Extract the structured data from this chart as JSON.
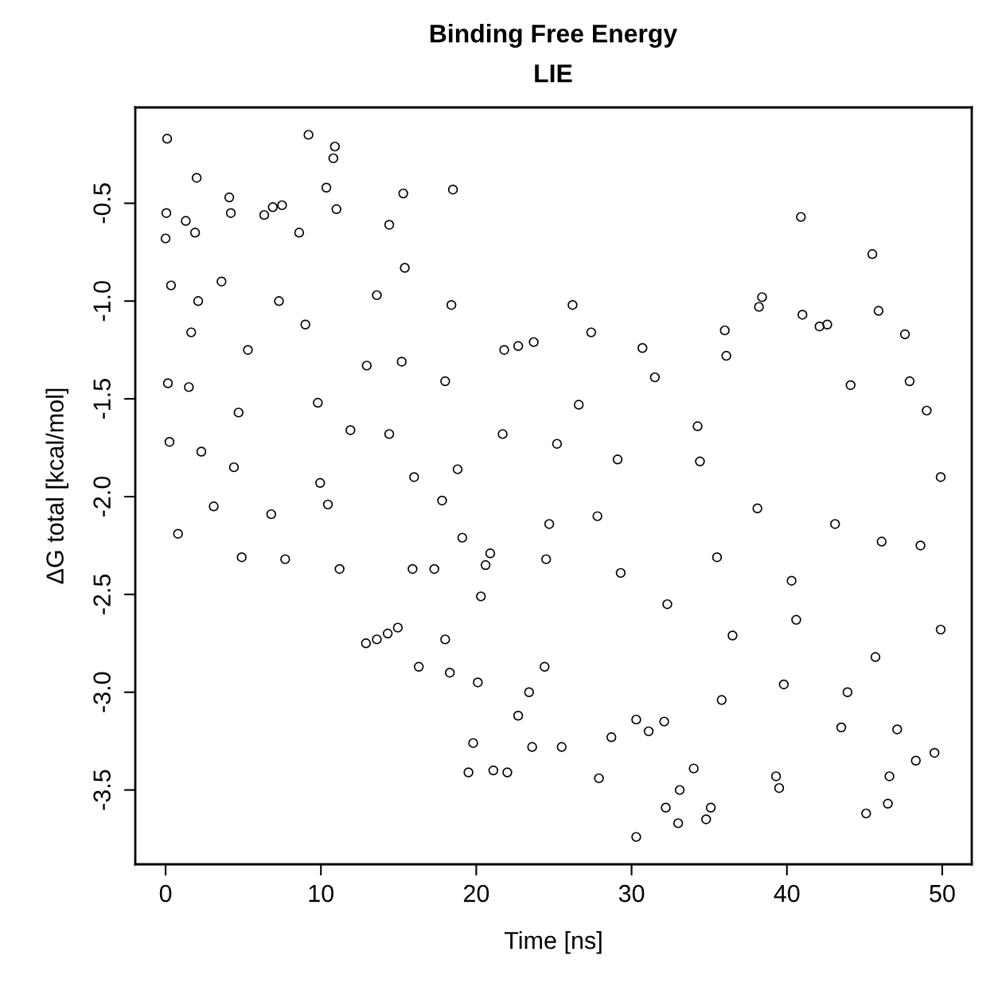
{
  "chart_data": {
    "type": "scatter",
    "title": "Binding Free Energy",
    "subtitle": "LIE",
    "xlabel": "Time [ns]",
    "ylabel": "ΔG total [kcal/mol]",
    "marker": "circle",
    "grid": false,
    "legend": false,
    "xlim": [
      -1.95,
      51.9
    ],
    "ylim": [
      -3.88,
      -0.01
    ],
    "xticks": [
      0,
      10,
      20,
      30,
      40,
      50
    ],
    "yticks": [
      -0.5,
      {
        "value": -1,
        "label": "-1.0"
      },
      -1.5,
      {
        "value": -2,
        "label": "-2.0"
      },
      -2.5,
      {
        "value": -3,
        "label": "-3.0"
      },
      -3.5
    ],
    "series": [
      {
        "color": "#000000",
        "x": [
          0.1,
          0.05,
          0,
          0.35,
          0.15,
          0.25,
          0.8,
          2.0,
          1.9,
          1.3,
          2.1,
          1.5,
          2.3,
          4.1,
          4.2,
          3.6,
          4.4,
          4.9,
          3.1,
          6.35,
          7.5,
          6.9,
          5.3,
          6.8,
          7.7,
          9.2,
          10.9,
          10.8,
          10.35,
          8.6,
          9.0,
          9.8,
          9.95,
          10.45,
          11.2,
          11.0,
          12.95,
          12.9,
          13.6,
          14.3,
          14.95,
          14.4,
          15.3,
          15.4,
          13.6,
          15.2,
          14.4,
          15.9,
          16.3,
          17.3,
          18.4,
          18.5,
          18.8,
          18.3,
          18.0,
          17.8,
          19.1,
          19.5,
          19.8,
          20.1,
          20.3,
          20.6,
          20.9,
          21.8,
          21.7,
          22.7,
          23.7,
          22.0,
          21.1,
          22.7,
          23.4,
          23.6,
          24.4,
          24.5,
          24.7,
          25.2,
          25.5,
          26.2,
          26.6,
          27.4,
          27.9,
          28.7,
          29.1,
          30.3,
          30.7,
          30.3,
          31.1,
          31.5,
          32.1,
          32.2,
          33.0,
          33.1,
          34.0,
          34.25,
          34.4,
          34.8,
          35.1,
          36.0,
          36.1,
          35.8,
          36.5,
          38.2,
          38.4,
          39.3,
          39.5,
          39.8,
          40.9,
          41.0,
          42.1,
          42.6,
          43.5,
          43.9,
          45.1,
          44.1,
          45.5,
          45.9,
          46.5,
          46.6,
          47.1,
          47.6,
          47.9,
          48.3,
          49.0,
          49.5,
          49.9,
          49.9,
          48.6,
          46.1,
          43.1,
          40.3,
          38.1,
          35.5,
          32.3,
          29.3,
          27.8,
          40.6,
          45.7,
          1.65,
          4.7,
          7.3,
          11.9,
          16.0,
          18.0
        ],
        "values": [
          -0.17,
          -0.55,
          -0.68,
          -0.92,
          -1.42,
          -1.72,
          -2.19,
          -0.37,
          -0.65,
          -0.59,
          -1.0,
          -1.44,
          -1.77,
          -0.47,
          -0.55,
          -0.9,
          -1.85,
          -2.31,
          -2.05,
          -0.56,
          -0.51,
          -0.52,
          -1.25,
          -2.09,
          -2.32,
          -0.15,
          -0.21,
          -0.27,
          -0.42,
          -0.65,
          -1.12,
          -1.52,
          -1.93,
          -2.04,
          -2.37,
          -0.53,
          -1.33,
          -2.75,
          -2.73,
          -2.7,
          -2.67,
          -0.61,
          -0.45,
          -0.83,
          -0.97,
          -1.31,
          -1.68,
          -2.37,
          -2.87,
          -2.37,
          -1.02,
          -0.43,
          -1.86,
          -2.9,
          -2.73,
          -2.02,
          -2.21,
          -3.41,
          -3.26,
          -2.95,
          -2.51,
          -2.35,
          -2.29,
          -1.25,
          -1.68,
          -1.23,
          -1.21,
          -3.41,
          -3.4,
          -3.12,
          -3.0,
          -3.28,
          -2.87,
          -2.32,
          -2.14,
          -1.73,
          -3.28,
          -1.02,
          -1.53,
          -1.16,
          -3.44,
          -3.23,
          -1.81,
          -3.74,
          -1.24,
          -3.14,
          -3.2,
          -1.39,
          -3.15,
          -3.59,
          -3.67,
          -3.5,
          -3.39,
          -1.64,
          -1.82,
          -3.65,
          -3.59,
          -1.15,
          -1.28,
          -3.04,
          -2.71,
          -1.03,
          -0.98,
          -3.43,
          -3.49,
          -2.96,
          -0.57,
          -1.07,
          -1.13,
          -1.12,
          -3.18,
          -3.0,
          -3.62,
          -1.43,
          -0.76,
          -1.05,
          -3.57,
          -3.43,
          -3.19,
          -1.17,
          -1.41,
          -3.35,
          -1.56,
          -3.31,
          -1.9,
          -2.68,
          -2.25,
          -2.23,
          -2.14,
          -2.43,
          -2.06,
          -2.31,
          -2.55,
          -2.39,
          -2.1,
          -2.63,
          -2.82,
          -1.16,
          -1.57,
          -1.0,
          -1.66,
          -1.9,
          -1.41
        ]
      }
    ]
  }
}
